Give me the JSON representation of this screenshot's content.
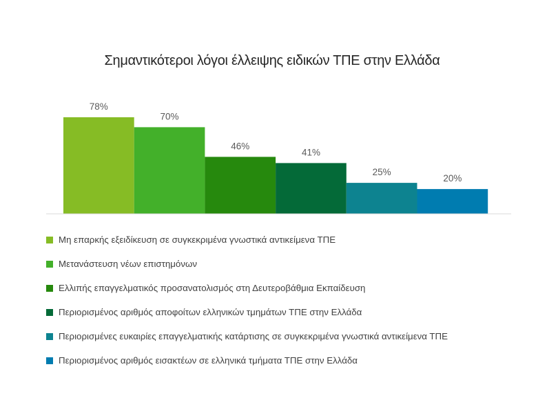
{
  "chart_data": {
    "type": "bar",
    "title": "Σημαντικότεροι λόγοι έλλειψης ειδικών ΤΠΕ στην Ελλάδα",
    "xlabel": "",
    "ylabel": "",
    "ylim": [
      0,
      100
    ],
    "grid": false,
    "legend_position": "bottom",
    "value_suffix": "%",
    "series": [
      {
        "name": "Μη επαρκής εξειδίκευση σε συγκεκριμένα γνωστικά αντικείμενα ΤΠΕ",
        "value": 78,
        "color": "#86bc25"
      },
      {
        "name": "Μετανάστευση νέων επιστημόνων",
        "value": 70,
        "color": "#43b02a"
      },
      {
        "name": "Ελλιπής επαγγελματικός προσανατολισμός στη Δευτεροβάθμια Εκπαίδευση",
        "value": 46,
        "color": "#26890d"
      },
      {
        "name": "Περιορισμένος αριθμός αποφοίτων ελληνικών τμημάτων ΤΠΕ στην Ελλάδα",
        "value": 41,
        "color": "#046a38"
      },
      {
        "name": "Περιορισμένες ευκαιρίες επαγγελματικής κατάρτισης σε συγκεκριμένα γνωστικά αντικείμενα ΤΠΕ",
        "value": 25,
        "color": "#0d8390"
      },
      {
        "name": "Περιορισμένος αριθμός εισακτέων σε ελληνικά τμήματα ΤΠΕ στην Ελλάδα",
        "value": 20,
        "color": "#007cb0"
      }
    ]
  }
}
